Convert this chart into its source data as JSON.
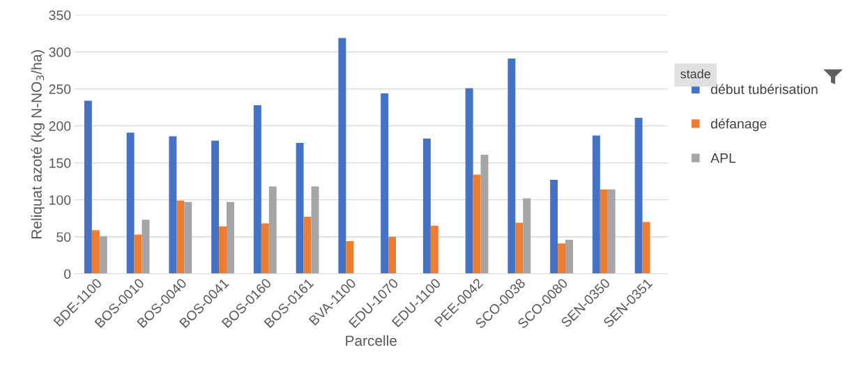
{
  "chart_data": {
    "type": "bar",
    "xlabel": "Parcelle",
    "ylabel": "Reliquat azoté (kg N-NO$_{3}$/ha)",
    "legend_title": "stade",
    "categories": [
      "BDE-1100",
      "BOS-0010",
      "BOS-0040",
      "BOS-0041",
      "BOS-0160",
      "BOS-0161",
      "BVA-1100",
      "EDU-1070",
      "EDU-1100",
      "PEE-0042",
      "SCO-0038",
      "SCO-0080",
      "SEN-0350",
      "SEN-0351"
    ],
    "series": [
      {
        "name": "début tubérisation",
        "color": "#4472c4",
        "values": [
          234,
          191,
          186,
          180,
          228,
          177,
          319,
          244,
          183,
          251,
          291,
          127,
          187,
          211
        ]
      },
      {
        "name": "défanage",
        "color": "#ed7d31",
        "values": [
          59,
          53,
          99,
          64,
          68,
          77,
          44,
          50,
          65,
          134,
          69,
          41,
          114,
          70
        ]
      },
      {
        "name": "APL",
        "color": "#a5a5a5",
        "values": [
          51,
          73,
          97,
          97,
          118,
          118,
          null,
          null,
          null,
          161,
          102,
          46,
          114,
          null
        ]
      }
    ],
    "ylim": [
      0,
      350
    ],
    "yticks": [
      0,
      50,
      100,
      150,
      200,
      250,
      300,
      350
    ],
    "grid": "y",
    "legend": "right"
  }
}
